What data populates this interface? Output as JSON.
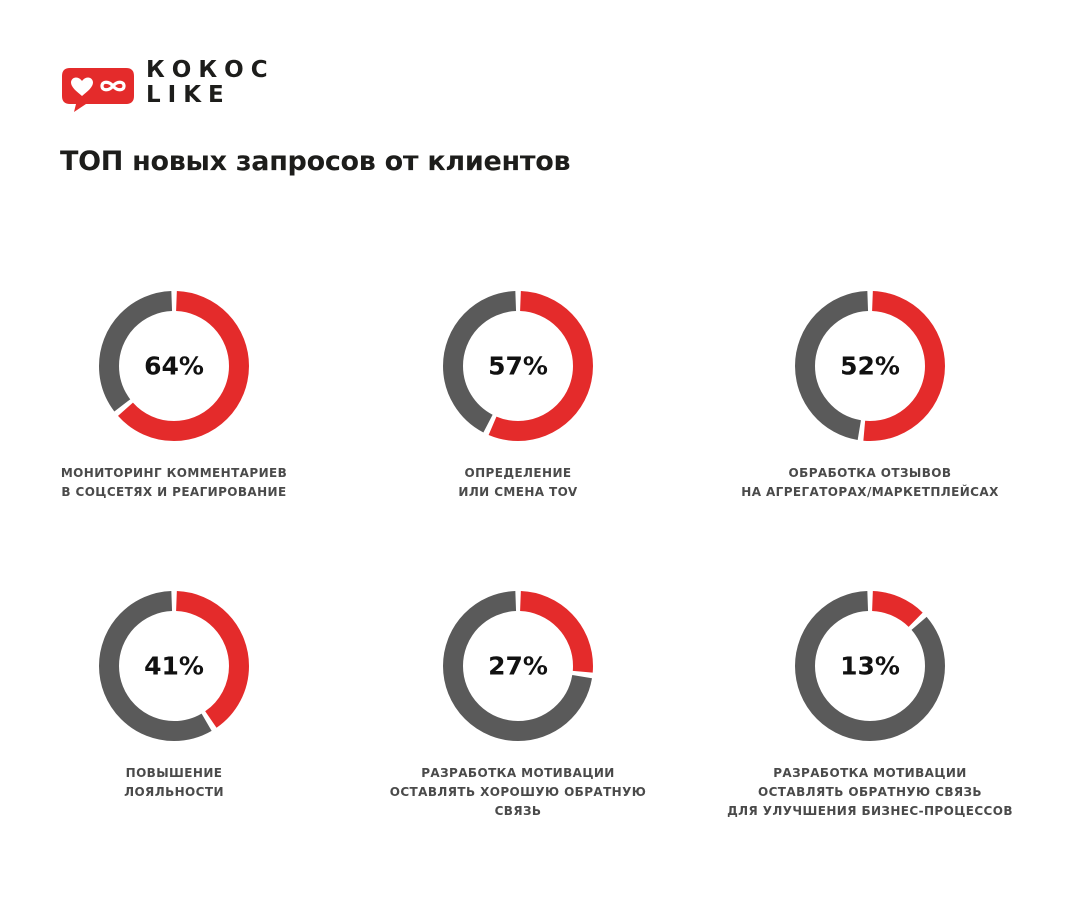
{
  "brand": {
    "logo_line1": "КОКОС",
    "logo_line2": "LIKE",
    "colors": {
      "red": "#e42b2b",
      "dark_gray": "#5a5a5a",
      "text": "#1d1d1b",
      "label_text": "#4a4a4a"
    }
  },
  "page": {
    "title": "ТОП новых запросов от клиентов"
  },
  "chart_data": {
    "type": "pie",
    "subtype": "donut",
    "title": "ТОП новых запросов от клиентов",
    "unit": "%",
    "colors": {
      "share": "#e42b2b",
      "rest": "#5a5a5a"
    },
    "categories": [
      [
        "МОНИТОРИНГ КОММЕНТАРИЕВ",
        "В СОЦСЕТЯХ И РЕАГИРОВАНИЕ"
      ],
      [
        "ОПРЕДЕЛЕНИЕ",
        "ИЛИ СМЕНА TOV"
      ],
      [
        "ОБРАБОТКА ОТЗЫВОВ",
        "НА АГРЕГАТОРАХ/МАРКЕТПЛЕЙСАХ"
      ],
      [
        "ПОВЫШЕНИЕ",
        "ЛОЯЛЬНОСТИ"
      ],
      [
        "РАЗРАБОТКА МОТИВАЦИИ",
        "ОСТАВЛЯТЬ ХОРОШУЮ ОБРАТНУЮ",
        "СВЯЗЬ"
      ],
      [
        "РАЗРАБОТКА МОТИВАЦИИ",
        "ОСТАВЛЯТЬ ОБРАТНУЮ СВЯЗЬ",
        "ДЛЯ УЛУЧШЕНИЯ БИЗНЕС-ПРОЦЕССОВ"
      ]
    ],
    "values": [
      64,
      57,
      52,
      41,
      27,
      13
    ],
    "value_labels": [
      "64%",
      "57%",
      "52%",
      "41%",
      "27%",
      "13%"
    ]
  }
}
